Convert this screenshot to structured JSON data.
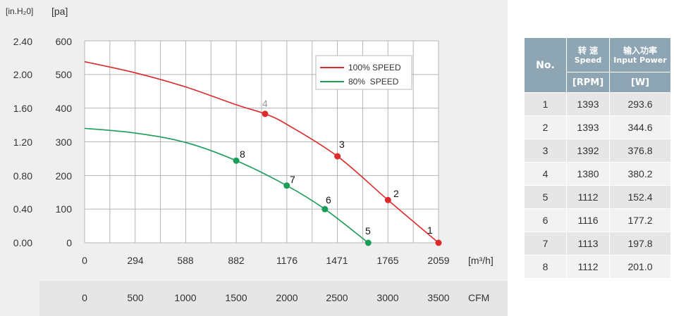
{
  "chart_data": {
    "type": "line",
    "y_units_left": "[in.H₂0]",
    "y_units_right": "[pa]",
    "x_unit": "[m³/h]",
    "x2_unit": "CFM",
    "xlim": [
      0,
      2059
    ],
    "ylim": [
      0,
      600
    ],
    "x_ticks": [
      "0",
      "294",
      "588",
      "882",
      "1176",
      "1471",
      "1765",
      "2059"
    ],
    "x2_ticks": [
      "0",
      "500",
      "1000",
      "1500",
      "2000",
      "2500",
      "3000",
      "3500"
    ],
    "y_ticks_pa": [
      "0",
      "100",
      "200",
      "300",
      "400",
      "500",
      "600"
    ],
    "y_ticks_in": [
      "0.00",
      "0.40",
      "0.80",
      "1.20",
      "1.60",
      "2.00",
      "2.40"
    ],
    "grid": true,
    "legend_position": "top-right",
    "series": [
      {
        "name": "100% SPEED",
        "color": "#dd2a2a",
        "curve": [
          [
            0,
            538
          ],
          [
            294,
            505
          ],
          [
            588,
            463
          ],
          [
            882,
            410
          ],
          [
            1050,
            383
          ],
          [
            1176,
            352
          ],
          [
            1471,
            257
          ],
          [
            1765,
            127
          ],
          [
            2059,
            0
          ]
        ],
        "points": [
          {
            "label": "1",
            "x": 2059,
            "y": 0
          },
          {
            "label": "2",
            "x": 1765,
            "y": 127
          },
          {
            "label": "3",
            "x": 1471,
            "y": 257
          },
          {
            "label": "4",
            "x": 1050,
            "y": 383
          }
        ]
      },
      {
        "name": "80%  SPEED",
        "color": "#1a9e57",
        "curve": [
          [
            0,
            340
          ],
          [
            294,
            326
          ],
          [
            588,
            298
          ],
          [
            882,
            244
          ],
          [
            1176,
            170
          ],
          [
            1398,
            100
          ],
          [
            1650,
            0
          ]
        ],
        "points": [
          {
            "label": "5",
            "x": 1650,
            "y": 0
          },
          {
            "label": "6",
            "x": 1398,
            "y": 100
          },
          {
            "label": "7",
            "x": 1176,
            "y": 170
          },
          {
            "label": "8",
            "x": 882,
            "y": 244
          }
        ]
      }
    ]
  },
  "table": {
    "headers": {
      "no": "No.",
      "speed_cn": "转 速",
      "speed_en": "Speed",
      "power_cn": "输入功率",
      "power_en": "Input Power",
      "speed_unit": "[RPM]",
      "power_unit": "[W]"
    },
    "rows": [
      {
        "no": "1",
        "rpm": "1393",
        "w": "293.6"
      },
      {
        "no": "2",
        "rpm": "1393",
        "w": "344.6"
      },
      {
        "no": "3",
        "rpm": "1392",
        "w": "376.8"
      },
      {
        "no": "4",
        "rpm": "1380",
        "w": "380.2"
      },
      {
        "no": "5",
        "rpm": "1112",
        "w": "152.4"
      },
      {
        "no": "6",
        "rpm": "1116",
        "w": "177.2"
      },
      {
        "no": "7",
        "rpm": "1113",
        "w": "197.8"
      },
      {
        "no": "8",
        "rpm": "1112",
        "w": "201.0"
      }
    ]
  }
}
